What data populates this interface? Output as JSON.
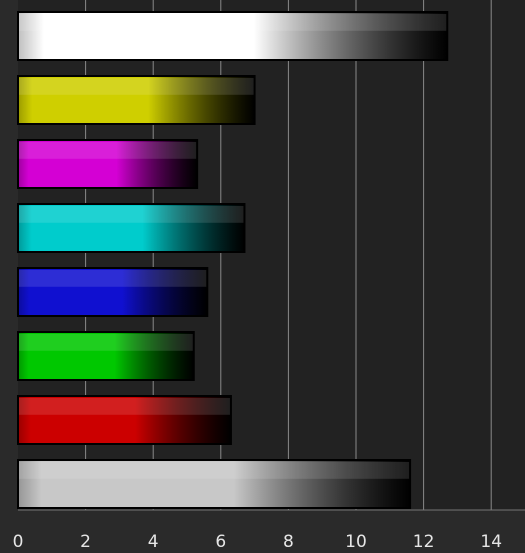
{
  "chart_data": {
    "type": "bar",
    "orientation": "horizontal",
    "title": "",
    "xlabel": "",
    "ylabel": "",
    "xlim": [
      0,
      15
    ],
    "xticks": [
      0,
      2,
      4,
      6,
      8,
      10,
      12,
      14
    ],
    "grid": "vertical",
    "legend": "none",
    "series": [
      {
        "values": [
          12.7,
          7.0,
          5.3,
          6.7,
          5.6,
          5.2,
          6.3,
          11.6
        ],
        "colors": [
          "#ffffff",
          "#cfcf00",
          "#d400d4",
          "#00cccc",
          "#1010d0",
          "#00c800",
          "#cc0000",
          "#c8c8c8"
        ]
      }
    ]
  }
}
